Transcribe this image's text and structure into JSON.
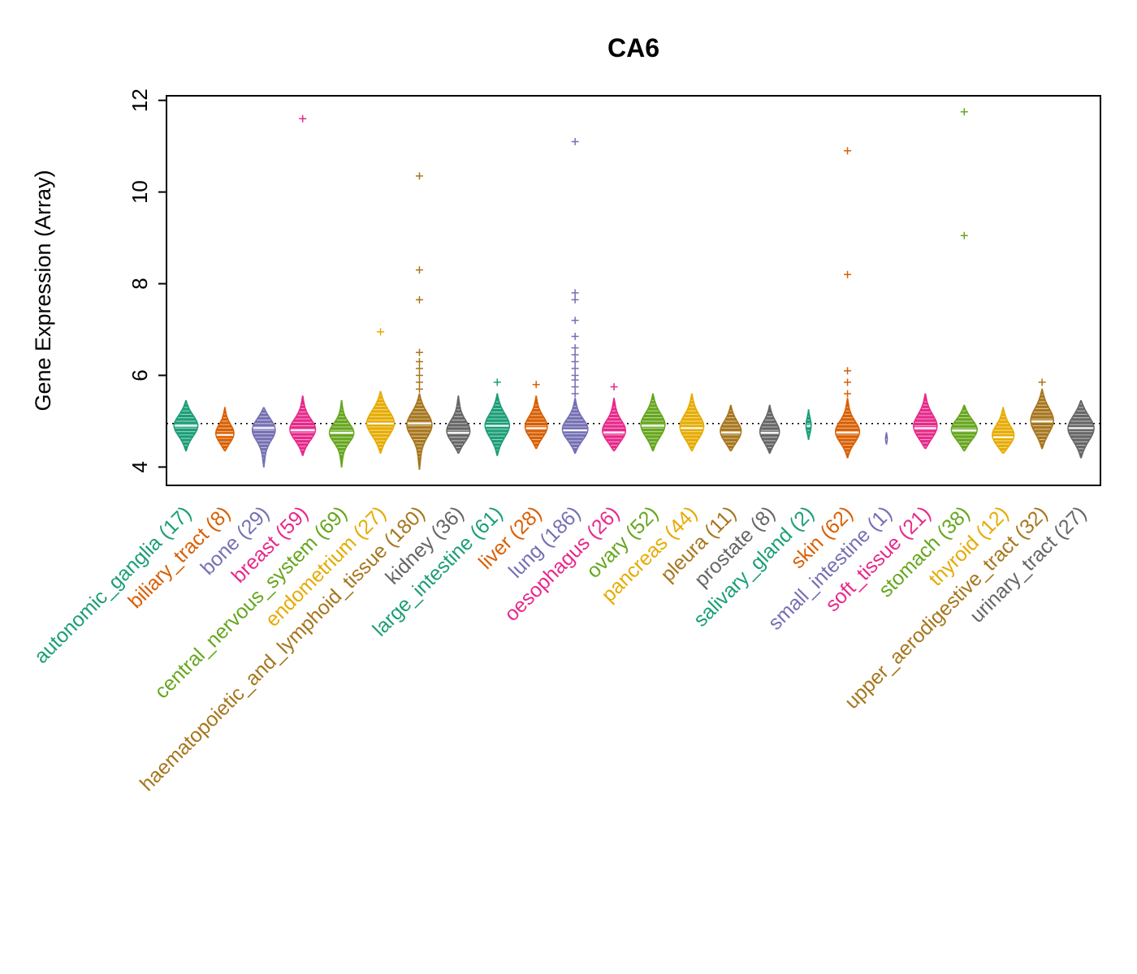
{
  "chart_data": {
    "type": "violin",
    "title": "CA6",
    "ylabel": "Gene Expression (Array)",
    "xlabel": "",
    "ylim": [
      3.6,
      12.1
    ],
    "yticks": [
      4,
      6,
      8,
      10,
      12
    ],
    "reference_line": 4.95,
    "grid": false,
    "legend": "none",
    "palette": [
      "#1B9E77",
      "#D95F02",
      "#7570B3",
      "#E7298A",
      "#66A61E",
      "#E6AB02",
      "#A6761D",
      "#666666"
    ],
    "categories": [
      {
        "name": "autonomic_ganglia",
        "n": 17,
        "label": "autonomic_ganglia (17)",
        "color": "#1B9E77",
        "median": 4.9,
        "min": 4.35,
        "max": 5.45,
        "sd": 0.25,
        "width": 0.78,
        "outliers": []
      },
      {
        "name": "biliary_tract",
        "n": 8,
        "label": "biliary_tract (8)",
        "color": "#D95F02",
        "median": 4.7,
        "min": 4.35,
        "max": 5.3,
        "sd": 0.22,
        "width": 0.62,
        "outliers": []
      },
      {
        "name": "bone",
        "n": 29,
        "label": "bone (29)",
        "color": "#7570B3",
        "median": 4.85,
        "min": 4.0,
        "max": 5.3,
        "sd": 0.25,
        "width": 0.8,
        "outliers": []
      },
      {
        "name": "breast",
        "n": 59,
        "label": "breast (59)",
        "color": "#E7298A",
        "median": 4.8,
        "min": 4.25,
        "max": 5.55,
        "sd": 0.25,
        "width": 0.85,
        "outliers": [
          11.6
        ]
      },
      {
        "name": "central_nervous_system",
        "n": 69,
        "label": "central_nervous_system (69)",
        "color": "#66A61E",
        "median": 4.75,
        "min": 4.0,
        "max": 5.45,
        "sd": 0.22,
        "width": 0.8,
        "outliers": []
      },
      {
        "name": "endometrium",
        "n": 27,
        "label": "endometrium (27)",
        "color": "#E6AB02",
        "median": 4.95,
        "min": 4.3,
        "max": 5.65,
        "sd": 0.3,
        "width": 0.9,
        "outliers": [
          6.95
        ]
      },
      {
        "name": "haematopoietic_and_lymphoid_tissue",
        "n": 180,
        "label": "haematopoietic_and_lymphoid_tissue (180)",
        "color": "#A6761D",
        "median": 4.95,
        "min": 3.95,
        "max": 5.6,
        "sd": 0.28,
        "width": 0.85,
        "outliers": [
          10.35,
          8.3,
          7.65,
          6.5,
          6.3,
          6.15,
          6.0,
          5.85,
          5.7
        ]
      },
      {
        "name": "kidney",
        "n": 36,
        "label": "kidney (36)",
        "color": "#666666",
        "median": 4.75,
        "min": 4.3,
        "max": 5.55,
        "sd": 0.25,
        "width": 0.8,
        "outliers": []
      },
      {
        "name": "large_intestine",
        "n": 61,
        "label": "large_intestine (61)",
        "color": "#1B9E77",
        "median": 4.9,
        "min": 4.25,
        "max": 5.6,
        "sd": 0.28,
        "width": 0.8,
        "outliers": [
          5.85
        ]
      },
      {
        "name": "liver",
        "n": 28,
        "label": "liver (28)",
        "color": "#D95F02",
        "median": 4.85,
        "min": 4.4,
        "max": 5.55,
        "sd": 0.25,
        "width": 0.75,
        "outliers": [
          5.8
        ]
      },
      {
        "name": "lung",
        "n": 186,
        "label": "lung (186)",
        "color": "#7570B3",
        "median": 4.8,
        "min": 4.3,
        "max": 5.5,
        "sd": 0.25,
        "width": 0.85,
        "outliers": [
          11.1,
          7.8,
          7.65,
          7.2,
          6.85,
          6.6,
          6.45,
          6.3,
          6.15,
          6.0,
          5.9,
          5.75,
          5.6
        ]
      },
      {
        "name": "oesophagus",
        "n": 26,
        "label": "oesophagus (26)",
        "color": "#E7298A",
        "median": 4.75,
        "min": 4.35,
        "max": 5.5,
        "sd": 0.25,
        "width": 0.8,
        "outliers": [
          5.75
        ]
      },
      {
        "name": "ovary",
        "n": 52,
        "label": "ovary (52)",
        "color": "#66A61E",
        "median": 4.9,
        "min": 4.35,
        "max": 5.6,
        "sd": 0.28,
        "width": 0.8,
        "outliers": []
      },
      {
        "name": "pancreas",
        "n": 44,
        "label": "pancreas (44)",
        "color": "#E6AB02",
        "median": 4.85,
        "min": 4.35,
        "max": 5.6,
        "sd": 0.28,
        "width": 0.8,
        "outliers": []
      },
      {
        "name": "pleura",
        "n": 11,
        "label": "pleura (11)",
        "color": "#A6761D",
        "median": 4.75,
        "min": 4.35,
        "max": 5.35,
        "sd": 0.25,
        "width": 0.7,
        "outliers": []
      },
      {
        "name": "prostate",
        "n": 8,
        "label": "prostate (8)",
        "color": "#666666",
        "median": 4.75,
        "min": 4.3,
        "max": 5.35,
        "sd": 0.25,
        "width": 0.65,
        "outliers": []
      },
      {
        "name": "salivary_gland",
        "n": 2,
        "label": "salivary_gland (2)",
        "color": "#1B9E77",
        "median": 4.9,
        "min": 4.6,
        "max": 5.25,
        "sd": 0.2,
        "width": 0.18,
        "outliers": []
      },
      {
        "name": "skin",
        "n": 62,
        "label": "skin (62)",
        "color": "#D95F02",
        "median": 4.75,
        "min": 4.2,
        "max": 5.5,
        "sd": 0.25,
        "width": 0.8,
        "outliers": [
          10.9,
          8.2,
          6.1,
          5.85,
          5.6
        ]
      },
      {
        "name": "small_intestine",
        "n": 1,
        "label": "small_intestine (1)",
        "color": "#7570B3",
        "median": 4.6,
        "min": 4.5,
        "max": 4.75,
        "sd": 0.15,
        "width": 0.07,
        "outliers": []
      },
      {
        "name": "soft_tissue",
        "n": 21,
        "label": "soft_tissue (21)",
        "color": "#E7298A",
        "median": 4.85,
        "min": 4.4,
        "max": 5.6,
        "sd": 0.28,
        "width": 0.8,
        "outliers": []
      },
      {
        "name": "stomach",
        "n": 38,
        "label": "stomach (38)",
        "color": "#66A61E",
        "median": 4.8,
        "min": 4.35,
        "max": 5.35,
        "sd": 0.25,
        "width": 0.85,
        "outliers": [
          11.75,
          9.05
        ]
      },
      {
        "name": "thyroid",
        "n": 12,
        "label": "thyroid (12)",
        "color": "#E6AB02",
        "median": 4.65,
        "min": 4.3,
        "max": 5.3,
        "sd": 0.25,
        "width": 0.75,
        "outliers": []
      },
      {
        "name": "upper_aerodigestive_tract",
        "n": 32,
        "label": "upper_aerodigestive_tract (32)",
        "color": "#A6761D",
        "median": 5.0,
        "min": 4.4,
        "max": 5.7,
        "sd": 0.3,
        "width": 0.75,
        "outliers": [
          5.85
        ]
      },
      {
        "name": "urinary_tract",
        "n": 27,
        "label": "urinary_tract (27)",
        "color": "#666666",
        "median": 4.85,
        "min": 4.2,
        "max": 5.45,
        "sd": 0.3,
        "width": 0.85,
        "outliers": []
      }
    ]
  }
}
